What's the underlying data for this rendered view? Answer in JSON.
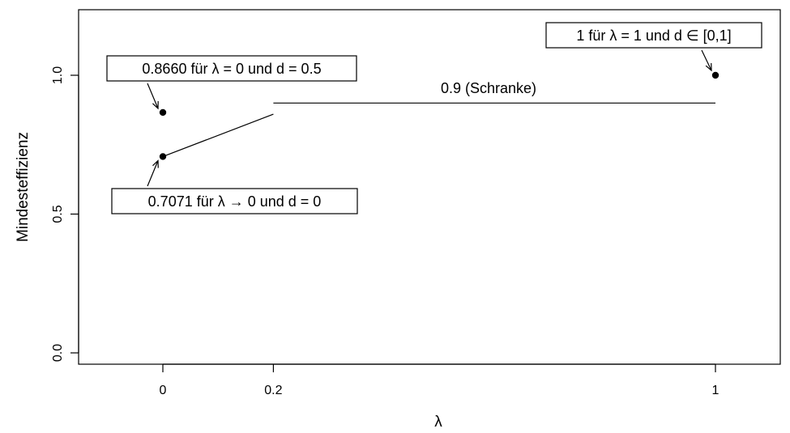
{
  "chart_data": {
    "type": "scatter",
    "xlabel": "λ",
    "ylabel": "Mindesteffizienz",
    "xlim": [
      -0.15,
      1.12
    ],
    "ylim": [
      -0.02,
      1.24
    ],
    "x_ticks": [
      {
        "value": 0,
        "label": "0"
      },
      {
        "value": 0.2,
        "label": "0.2"
      },
      {
        "value": 1,
        "label": "1"
      }
    ],
    "y_ticks": [
      {
        "value": 0.0,
        "label": "0.0"
      },
      {
        "value": 0.5,
        "label": "0.5"
      },
      {
        "value": 1.0,
        "label": "1.0"
      }
    ],
    "grid": false,
    "points": [
      {
        "x": 0,
        "y": 0.866
      },
      {
        "x": 0,
        "y": 0.7071
      },
      {
        "x": 1,
        "y": 1.0
      }
    ],
    "lines": [
      {
        "points": [
          [
            0,
            0.7071
          ],
          [
            0.2,
            0.86
          ]
        ]
      },
      {
        "points": [
          [
            0.2,
            0.9
          ],
          [
            1,
            0.9
          ]
        ]
      }
    ],
    "annotations": {
      "point_1": "0.8660 für λ = 0 und d = 0.5",
      "point_2": "0.7071 für λ → 0 und d = 0",
      "point_3": "1 für λ = 1 und d ∈ [0,1]",
      "bound": "0.9 (Schranke)"
    }
  }
}
